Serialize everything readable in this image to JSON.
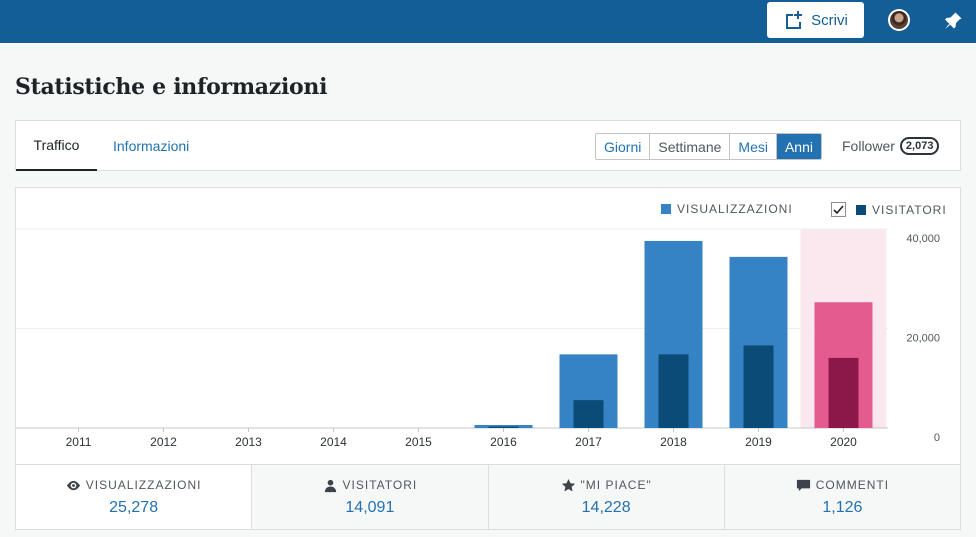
{
  "masterbar": {
    "write_label": "Scrivi"
  },
  "page": {
    "title": "Statistiche e informazioni"
  },
  "tabs": [
    {
      "label": "Traffico",
      "selected": true
    },
    {
      "label": "Informazioni",
      "selected": false
    }
  ],
  "period": {
    "options": [
      "Giorni",
      "Settimane",
      "Mesi",
      "Anni"
    ],
    "selected": "Anni"
  },
  "follower": {
    "label": "Follower",
    "count": "2,073"
  },
  "colors": {
    "views": "#3582c4",
    "visitors": "#0a4b78",
    "views_highlight": "#e35b8f",
    "visitors_highlight": "#8c1749",
    "highlight_band": "#fbe8ef"
  },
  "chart_data": {
    "type": "bar",
    "categories": [
      "2011",
      "2012",
      "2013",
      "2014",
      "2015",
      "2016",
      "2017",
      "2018",
      "2019",
      "2020"
    ],
    "series": [
      {
        "name": "VISUALIZZAZIONI",
        "values": [
          0,
          0,
          0,
          0,
          0,
          600,
          14800,
          37600,
          34400,
          25278
        ]
      },
      {
        "name": "VISITATORI",
        "values": [
          0,
          0,
          0,
          0,
          0,
          300,
          5600,
          14800,
          16600,
          14091
        ]
      }
    ],
    "ylim": [
      0,
      40000
    ],
    "y_ticks": [
      "40,000",
      "20,000",
      "0"
    ],
    "highlight": "2020",
    "legend_placement": "top-right",
    "visitors_checked": true,
    "grid": true
  },
  "stats": [
    {
      "icon": "eye-icon",
      "label": "VISUALIZZAZIONI",
      "value": "25,278",
      "selected": true
    },
    {
      "icon": "person-icon",
      "label": "VISITATORI",
      "value": "14,091",
      "selected": false
    },
    {
      "icon": "star-icon",
      "label": "\"MI PIACE\"",
      "value": "14,228",
      "selected": false
    },
    {
      "icon": "comment-icon",
      "label": "COMMENTI",
      "value": "1,126",
      "selected": false
    }
  ]
}
